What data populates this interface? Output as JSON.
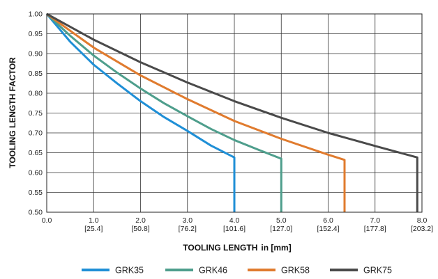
{
  "chart_data": {
    "type": "line",
    "title": "",
    "xlabel": "TOOLING LENGTH",
    "xlabel_unit": "in [mm]",
    "ylabel": "TOOLING LENGTH FACTOR",
    "xlim": [
      0,
      8
    ],
    "ylim": [
      0.5,
      1.0
    ],
    "grid": true,
    "legend_position": "bottom",
    "x_ticks": [
      {
        "value": 0,
        "label": "0.0",
        "sub": ""
      },
      {
        "value": 1,
        "label": "1.0",
        "sub": "[25.4]"
      },
      {
        "value": 2,
        "label": "2.0",
        "sub": "[50.8]"
      },
      {
        "value": 3,
        "label": "3.0",
        "sub": "[76.2]"
      },
      {
        "value": 4,
        "label": "4.0",
        "sub": "[101.6]"
      },
      {
        "value": 5,
        "label": "5.0",
        "sub": "[127.0]"
      },
      {
        "value": 6,
        "label": "6.0",
        "sub": "[152.4]"
      },
      {
        "value": 7,
        "label": "7.0",
        "sub": "[177.8]"
      },
      {
        "value": 8,
        "label": "8.0",
        "sub": "[203.2]"
      }
    ],
    "y_ticks": [
      {
        "value": 0.5,
        "label": "0.50"
      },
      {
        "value": 0.55,
        "label": "0.55"
      },
      {
        "value": 0.6,
        "label": "0.60"
      },
      {
        "value": 0.65,
        "label": "0.65"
      },
      {
        "value": 0.7,
        "label": "0.70"
      },
      {
        "value": 0.75,
        "label": "0.75"
      },
      {
        "value": 0.8,
        "label": "0.80"
      },
      {
        "value": 0.85,
        "label": "0.85"
      },
      {
        "value": 0.9,
        "label": "0.90"
      },
      {
        "value": 0.95,
        "label": "0.95"
      },
      {
        "value": 1.0,
        "label": "1.00"
      }
    ],
    "series": [
      {
        "name": "GRK35",
        "color": "#1f8fd6",
        "points": [
          [
            0,
            1.0
          ],
          [
            0.5,
            0.93
          ],
          [
            1.0,
            0.872
          ],
          [
            1.5,
            0.825
          ],
          [
            2.0,
            0.78
          ],
          [
            2.5,
            0.74
          ],
          [
            3.0,
            0.705
          ],
          [
            3.5,
            0.668
          ],
          [
            4.0,
            0.638
          ],
          [
            4.0,
            0.5
          ]
        ]
      },
      {
        "name": "GRK46",
        "color": "#4e9e8c",
        "points": [
          [
            0,
            1.0
          ],
          [
            0.5,
            0.945
          ],
          [
            1.0,
            0.895
          ],
          [
            1.5,
            0.852
          ],
          [
            2.0,
            0.812
          ],
          [
            2.5,
            0.775
          ],
          [
            3.0,
            0.742
          ],
          [
            3.5,
            0.71
          ],
          [
            4.0,
            0.682
          ],
          [
            4.5,
            0.658
          ],
          [
            5.0,
            0.635
          ],
          [
            5.0,
            0.5
          ]
        ]
      },
      {
        "name": "GRK58",
        "color": "#e07b2e",
        "points": [
          [
            0,
            1.0
          ],
          [
            1.0,
            0.915
          ],
          [
            2.0,
            0.845
          ],
          [
            3.0,
            0.785
          ],
          [
            4.0,
            0.73
          ],
          [
            5.0,
            0.685
          ],
          [
            6.0,
            0.645
          ],
          [
            6.35,
            0.632
          ],
          [
            6.35,
            0.5
          ]
        ]
      },
      {
        "name": "GRK75",
        "color": "#4a4a4a",
        "points": [
          [
            0,
            1.0
          ],
          [
            1.0,
            0.935
          ],
          [
            2.0,
            0.878
          ],
          [
            3.0,
            0.827
          ],
          [
            4.0,
            0.78
          ],
          [
            5.0,
            0.738
          ],
          [
            6.0,
            0.7
          ],
          [
            7.0,
            0.667
          ],
          [
            7.9,
            0.638
          ],
          [
            7.9,
            0.5
          ]
        ]
      }
    ]
  }
}
